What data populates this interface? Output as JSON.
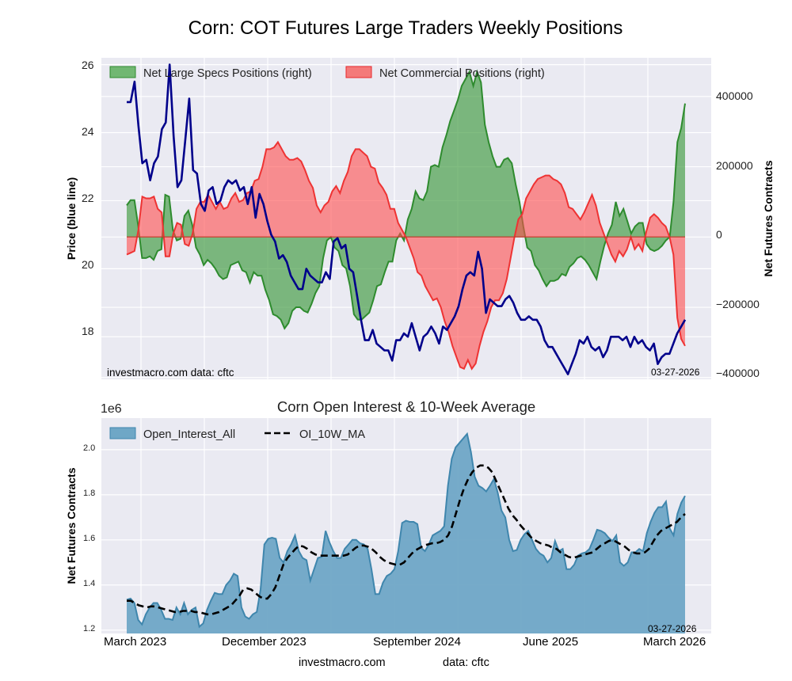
{
  "title": "Corn: COT Futures Large Traders Weekly Positions",
  "footer": {
    "site": "investmacro.com",
    "source": "data: cftc"
  },
  "chart_data": [
    {
      "type": "area",
      "id": "positions",
      "title": "Corn: COT Futures Large Traders Weekly Positions",
      "ylabel_left": "Price (blue line)",
      "ylabel_right": "Net Futures Contracts",
      "left_ticks": [
        "18",
        "20",
        "22",
        "24",
        "26"
      ],
      "left_tick_values": [
        18,
        20,
        22,
        24,
        26
      ],
      "right_ticks": [
        "−400000",
        "−200000",
        "0",
        "200000",
        "400000"
      ],
      "right_tick_values": [
        -400000,
        -200000,
        0,
        200000,
        400000
      ],
      "ylim_left": [
        16.75,
        26.2
      ],
      "ylim_right": [
        -405000,
        510000
      ],
      "grid": true,
      "legend": {
        "placement": "top-left",
        "entries": [
          "Net Large Specs Positions (right)",
          "Net Commercial Positions (right)"
        ]
      },
      "annotations": {
        "left_note": "investmacro.com    data: cftc",
        "date": "03-27-2026"
      },
      "x_start": "2023-03",
      "x_end": "2026-03-27",
      "series": [
        {
          "name": "Price",
          "color": "#00008b",
          "axis": "left",
          "values": [
            24.9,
            24.9,
            25.5,
            24.2,
            23.1,
            23.2,
            22.6,
            23.1,
            23.3,
            24.1,
            24.3,
            26.0,
            23.9,
            22.4,
            22.6,
            23.8,
            25.0,
            22.9,
            22.8,
            21.9,
            21.7,
            22.3,
            22.4,
            21.9,
            22.0,
            22.4,
            22.6,
            22.5,
            22.6,
            22.3,
            22.4,
            21.9,
            22.4,
            21.5,
            22.2,
            21.9,
            21.4,
            21.0,
            20.8,
            20.3,
            20.4,
            20.2,
            19.8,
            19.6,
            19.4,
            19.4,
            20.0,
            19.8,
            19.7,
            19.6,
            19.6,
            19.9,
            19.7,
            20.8,
            20.9,
            20.6,
            20.7,
            20.0,
            19.9,
            19.2,
            18.5,
            17.9,
            17.9,
            18.2,
            17.8,
            17.7,
            17.6,
            17.6,
            17.3,
            17.9,
            17.9,
            18.1,
            18.0,
            18.4,
            18.0,
            17.6,
            18.0,
            18.1,
            18.3,
            18.1,
            17.8,
            18.3,
            18.2,
            18.4,
            18.6,
            18.9,
            19.4,
            19.8,
            19.9,
            19.8,
            20.5,
            20.0,
            18.7,
            19.1,
            19.0,
            18.9,
            18.9,
            19.1,
            19.2,
            19.0,
            18.7,
            18.5,
            18.5,
            18.6,
            18.5,
            18.5,
            18.3,
            17.9,
            17.7,
            17.7,
            17.5,
            17.3,
            17.1,
            16.9,
            17.2,
            17.5,
            17.9,
            17.8,
            18.0,
            17.7,
            17.6,
            17.7,
            17.4,
            17.6,
            18.0,
            18.0,
            18.0,
            17.9,
            18.0,
            17.7,
            18.0,
            17.8,
            17.9,
            17.7,
            17.6,
            17.8,
            17.2,
            17.4,
            17.5,
            17.5,
            17.8,
            18.1,
            18.3,
            18.5
          ]
        },
        {
          "name": "Net Large Specs Positions (right)",
          "color": "#2e8b2e",
          "axis": "right",
          "values": [
            90000,
            105000,
            105000,
            30000,
            -60000,
            -60000,
            -55000,
            -65000,
            -40000,
            -35000,
            120000,
            115000,
            20000,
            -10000,
            -5000,
            60000,
            75000,
            35000,
            -30000,
            -50000,
            -80000,
            -65000,
            -75000,
            -90000,
            -110000,
            -120000,
            -115000,
            -80000,
            -75000,
            -70000,
            -95000,
            -100000,
            -130000,
            -100000,
            -110000,
            -110000,
            -150000,
            -180000,
            -220000,
            -225000,
            -235000,
            -260000,
            -245000,
            -210000,
            -200000,
            -200000,
            -210000,
            -215000,
            -190000,
            -160000,
            -140000,
            -60000,
            -10000,
            0,
            -30000,
            -40000,
            -80000,
            -90000,
            -140000,
            -220000,
            -235000,
            -235000,
            -225000,
            -215000,
            -180000,
            -140000,
            -135000,
            -100000,
            -70000,
            -70000,
            -10000,
            10000,
            -10000,
            50000,
            80000,
            130000,
            110000,
            105000,
            130000,
            200000,
            205000,
            200000,
            255000,
            290000,
            330000,
            360000,
            390000,
            430000,
            450000,
            470000,
            430000,
            470000,
            440000,
            320000,
            270000,
            230000,
            200000,
            200000,
            220000,
            225000,
            210000,
            150000,
            100000,
            30000,
            -30000,
            -40000,
            -80000,
            -95000,
            -120000,
            -140000,
            -125000,
            -125000,
            -120000,
            -105000,
            -110000,
            -85000,
            -75000,
            -60000,
            -55000,
            -65000,
            -80000,
            -100000,
            -120000,
            -70000,
            -25000,
            10000,
            35000,
            100000,
            60000,
            80000,
            45000,
            10000,
            30000,
            40000,
            40000,
            -20000,
            -35000,
            -40000,
            -35000,
            -25000,
            -10000,
            0,
            100000,
            270000,
            310000,
            380000
          ]
        },
        {
          "name": "Net Commercial Positions (right)",
          "color": "#e8282c",
          "axis": "right",
          "values": [
            -50000,
            -45000,
            -40000,
            20000,
            115000,
            110000,
            110000,
            115000,
            80000,
            70000,
            -55000,
            -55000,
            10000,
            40000,
            35000,
            -20000,
            -25000,
            10000,
            80000,
            100000,
            100000,
            120000,
            100000,
            80000,
            100000,
            80000,
            85000,
            110000,
            125000,
            100000,
            105000,
            125000,
            130000,
            160000,
            165000,
            200000,
            250000,
            250000,
            255000,
            270000,
            250000,
            230000,
            220000,
            220000,
            225000,
            215000,
            190000,
            160000,
            140000,
            90000,
            70000,
            90000,
            100000,
            130000,
            145000,
            125000,
            160000,
            185000,
            230000,
            250000,
            250000,
            240000,
            230000,
            200000,
            195000,
            155000,
            140000,
            120000,
            80000,
            80000,
            40000,
            20000,
            0,
            -30000,
            -60000,
            -100000,
            -110000,
            -140000,
            -160000,
            -180000,
            -175000,
            -200000,
            -240000,
            -270000,
            -310000,
            -340000,
            -370000,
            -375000,
            -350000,
            -375000,
            -360000,
            -310000,
            -270000,
            -240000,
            -200000,
            -180000,
            -180000,
            -160000,
            -120000,
            -60000,
            0,
            50000,
            65000,
            110000,
            130000,
            150000,
            165000,
            170000,
            175000,
            175000,
            165000,
            160000,
            150000,
            125000,
            85000,
            80000,
            65000,
            50000,
            70000,
            95000,
            120000,
            90000,
            40000,
            10000,
            -20000,
            -50000,
            -70000,
            -40000,
            -55000,
            -35000,
            0,
            -35000,
            -20000,
            -40000,
            15000,
            55000,
            65000,
            55000,
            40000,
            30000,
            0,
            -50000,
            -230000,
            -290000,
            -310000
          ]
        }
      ]
    },
    {
      "type": "area",
      "id": "open_interest",
      "title": "Corn Open Interest & 10-Week Average",
      "ylabel": "Net Futures Contracts",
      "y_multiplier": "1e6",
      "y_ticks": [
        "1.2",
        "1.4",
        "1.6",
        "1.8",
        "2.0"
      ],
      "y_tick_values": [
        1.2,
        1.4,
        1.6,
        1.8,
        2.0
      ],
      "ylim": [
        1.185,
        2.14
      ],
      "x_ticks": [
        "March 2023",
        "December 2023",
        "September 2024",
        "June 2025",
        "March 2026"
      ],
      "grid": true,
      "legend": {
        "placement": "top-left",
        "entries": [
          "Open_Interest_All",
          "OI_10W_MA"
        ]
      },
      "annotations": {
        "date": "03-27-2026"
      },
      "series": [
        {
          "name": "Open_Interest_All",
          "color": "#4a8ab0",
          "unit": "millions",
          "values": [
            1.335,
            1.34,
            1.32,
            1.245,
            1.225,
            1.27,
            1.3,
            1.32,
            1.32,
            1.29,
            1.25,
            1.25,
            1.245,
            1.3,
            1.27,
            1.32,
            1.27,
            1.29,
            1.3,
            1.215,
            1.23,
            1.29,
            1.33,
            1.365,
            1.36,
            1.36,
            1.4,
            1.42,
            1.45,
            1.44,
            1.3,
            1.26,
            1.25,
            1.27,
            1.28,
            1.38,
            1.58,
            1.605,
            1.61,
            1.605,
            1.52,
            1.5,
            1.55,
            1.58,
            1.62,
            1.55,
            1.52,
            1.51,
            1.42,
            1.47,
            1.52,
            1.525,
            1.64,
            1.59,
            1.55,
            1.52,
            1.52,
            1.56,
            1.58,
            1.6,
            1.6,
            1.585,
            1.58,
            1.56,
            1.47,
            1.36,
            1.36,
            1.41,
            1.44,
            1.45,
            1.47,
            1.55,
            1.675,
            1.685,
            1.68,
            1.68,
            1.67,
            1.565,
            1.55,
            1.58,
            1.62,
            1.63,
            1.64,
            1.66,
            1.84,
            1.96,
            2.01,
            2.03,
            2.05,
            2.07,
            1.99,
            1.88,
            1.84,
            1.83,
            1.815,
            1.84,
            1.87,
            1.81,
            1.73,
            1.7,
            1.6,
            1.55,
            1.555,
            1.6,
            1.625,
            1.64,
            1.6,
            1.56,
            1.54,
            1.53,
            1.5,
            1.52,
            1.595,
            1.55,
            1.56,
            1.47,
            1.47,
            1.49,
            1.53,
            1.54,
            1.545,
            1.56,
            1.6,
            1.645,
            1.64,
            1.63,
            1.61,
            1.595,
            1.62,
            1.5,
            1.485,
            1.5,
            1.545,
            1.545,
            1.56,
            1.55,
            1.63,
            1.68,
            1.72,
            1.745,
            1.745,
            1.77,
            1.65,
            1.62,
            1.715,
            1.765,
            1.795
          ]
        },
        {
          "name": "OI_10W_MA",
          "color": "#000000",
          "style": "dashed",
          "unit": "millions",
          "values": [
            1.33,
            1.33,
            1.32,
            1.31,
            1.305,
            1.3,
            1.305,
            1.305,
            1.3,
            1.295,
            1.29,
            1.285,
            1.28,
            1.28,
            1.285,
            1.285,
            1.285,
            1.28,
            1.28,
            1.275,
            1.27,
            1.27,
            1.275,
            1.28,
            1.29,
            1.3,
            1.31,
            1.33,
            1.35,
            1.38,
            1.385,
            1.38,
            1.365,
            1.35,
            1.34,
            1.34,
            1.36,
            1.39,
            1.44,
            1.49,
            1.52,
            1.54,
            1.56,
            1.575,
            1.57,
            1.56,
            1.545,
            1.535,
            1.53,
            1.53,
            1.53,
            1.53,
            1.53,
            1.53,
            1.53,
            1.535,
            1.55,
            1.565,
            1.575,
            1.575,
            1.57,
            1.56,
            1.545,
            1.525,
            1.51,
            1.5,
            1.495,
            1.49,
            1.49,
            1.5,
            1.52,
            1.54,
            1.555,
            1.565,
            1.575,
            1.58,
            1.585,
            1.585,
            1.59,
            1.6,
            1.62,
            1.66,
            1.72,
            1.78,
            1.83,
            1.87,
            1.9,
            1.92,
            1.93,
            1.93,
            1.92,
            1.9,
            1.86,
            1.82,
            1.78,
            1.74,
            1.71,
            1.69,
            1.665,
            1.645,
            1.625,
            1.605,
            1.595,
            1.585,
            1.58,
            1.575,
            1.565,
            1.56,
            1.545,
            1.535,
            1.525,
            1.52,
            1.525,
            1.53,
            1.535,
            1.54,
            1.545,
            1.56,
            1.575,
            1.585,
            1.595,
            1.6,
            1.59,
            1.58,
            1.57,
            1.555,
            1.545,
            1.54,
            1.54,
            1.545,
            1.56,
            1.59,
            1.62,
            1.64,
            1.65,
            1.66,
            1.67,
            1.68,
            1.7,
            1.715
          ]
        }
      ]
    }
  ]
}
